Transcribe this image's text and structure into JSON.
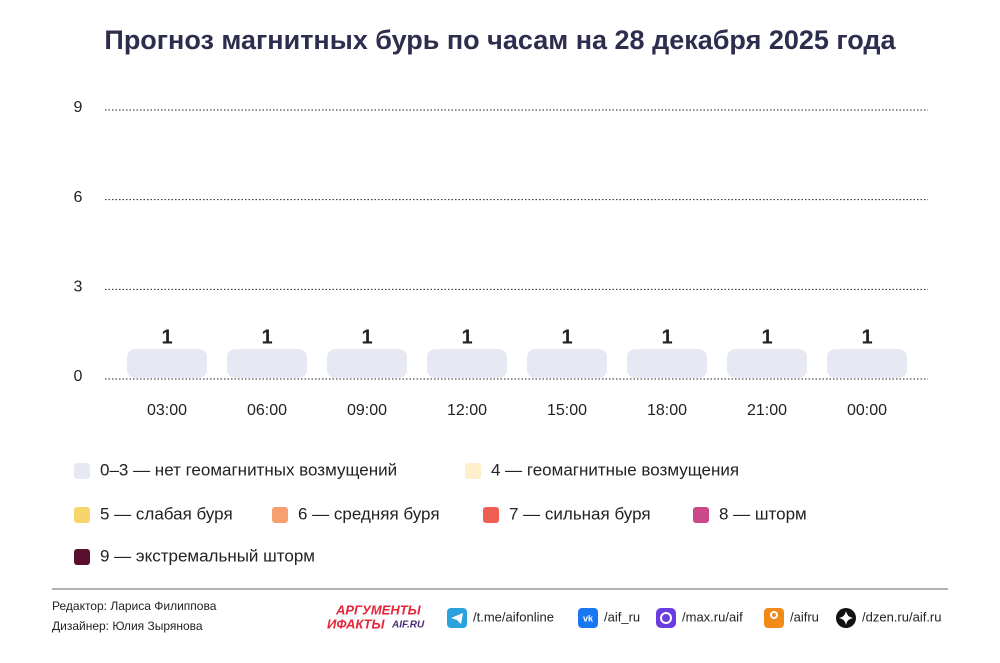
{
  "chart_data": {
    "type": "bar",
    "title": "Прогноз магнитных бурь по часам на 28 декабря 2025 года",
    "categories": [
      "03:00",
      "06:00",
      "09:00",
      "12:00",
      "15:00",
      "18:00",
      "21:00",
      "00:00"
    ],
    "values": [
      1,
      1,
      1,
      1,
      1,
      1,
      1,
      1
    ],
    "color": "#e6e8f3",
    "ylim": [
      0,
      9
    ],
    "yticks": [
      0,
      3,
      6,
      9
    ],
    "grid": true,
    "legend": [
      {
        "label": "0–3 — нет геомагнитных возмущений",
        "color": "#e6e8f3"
      },
      {
        "label": "4 — геомагнитные возмущения",
        "color": "#fcefc9"
      },
      {
        "label": "5 — слабая буря",
        "color": "#f8d46c"
      },
      {
        "label": "6 — средняя буря",
        "color": "#f5a06e"
      },
      {
        "label": "7 — сильная буря",
        "color": "#ee5e52"
      },
      {
        "label": "8 — шторм",
        "color": "#c9498b"
      },
      {
        "label": "9 — экстремальный шторм",
        "color": "#5a0f2e"
      }
    ]
  },
  "footer": {
    "credits": [
      "Редактор: Лариса Филиппова",
      "Дизайнер: Юлия Зырянова"
    ],
    "logo": [
      "АРГУМЕНТЫ",
      "ИФАКТЫ",
      "AIF.RU"
    ],
    "links": [
      "/t.me/aifonline",
      "/aif_ru",
      "/max.ru/aif",
      "/aifru",
      "/dzen.ru/aif.ru"
    ]
  }
}
